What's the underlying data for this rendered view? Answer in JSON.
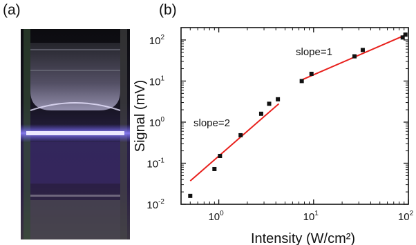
{
  "panels": {
    "a": "(a)",
    "b": "(b)"
  },
  "chart_data": {
    "type": "scatter",
    "xscale": "log",
    "yscale": "log",
    "xlim": [
      0.4,
      100
    ],
    "ylim": [
      0.01,
      200
    ],
    "xlabel": "Intensity (W/cm²)",
    "ylabel": "Signal (mV)",
    "xticks": [
      {
        "value": 1,
        "base": "10",
        "exp": "0"
      },
      {
        "value": 10,
        "base": "10",
        "exp": "1"
      },
      {
        "value": 100,
        "base": "10",
        "exp": "2"
      }
    ],
    "yticks": [
      {
        "value": 0.01,
        "base": "10",
        "exp": "-2"
      },
      {
        "value": 0.1,
        "base": "10",
        "exp": "-1"
      },
      {
        "value": 1,
        "base": "10",
        "exp": "0"
      },
      {
        "value": 10,
        "base": "10",
        "exp": "1"
      },
      {
        "value": 100,
        "base": "10",
        "exp": "2"
      }
    ],
    "points": [
      [
        0.5,
        0.016
      ],
      [
        0.9,
        0.072
      ],
      [
        1.03,
        0.15
      ],
      [
        1.7,
        0.48
      ],
      [
        2.8,
        1.6
      ],
      [
        3.4,
        2.8
      ],
      [
        4.2,
        3.6
      ],
      [
        7.5,
        10
      ],
      [
        9.5,
        15
      ],
      [
        27,
        40
      ],
      [
        33,
        57
      ],
      [
        87,
        115
      ],
      [
        93,
        135
      ]
    ],
    "fits": [
      {
        "label": "slope=2",
        "from": [
          0.5,
          0.037
        ],
        "to": [
          4.3,
          2.8
        ]
      },
      {
        "label": "slope=1",
        "from": [
          7.6,
          10.8
        ],
        "to": [
          95,
          135
        ]
      }
    ],
    "colors": {
      "points": "#111111",
      "fit": "#e8201c",
      "axes": "#111111"
    }
  }
}
